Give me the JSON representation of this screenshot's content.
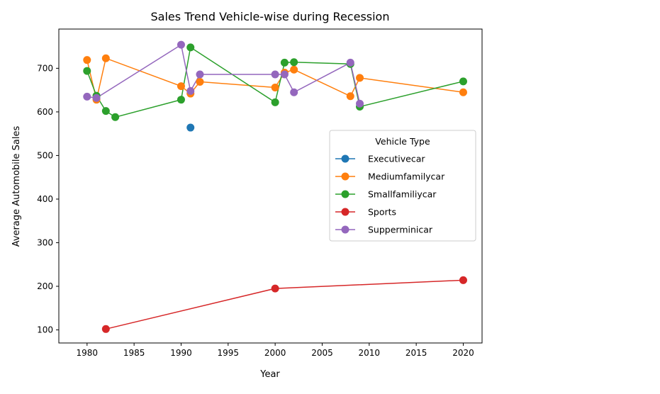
{
  "chart_data": {
    "type": "line",
    "title": "Sales Trend Vehicle-wise during Recession",
    "xlabel": "Year",
    "ylabel": "Average Automobile Sales",
    "xlim": [
      1977,
      2022
    ],
    "ylim": [
      70,
      790
    ],
    "x_ticks": [
      1980,
      1985,
      1990,
      1995,
      2000,
      2005,
      2010,
      2015,
      2020
    ],
    "y_ticks": [
      100,
      200,
      300,
      400,
      500,
      600,
      700
    ],
    "grid": false,
    "legend": {
      "title": "Vehicle Type",
      "placement": "center-right"
    },
    "series": [
      {
        "name": "Executivecar",
        "color": "#1f77b4",
        "points": [
          [
            1991,
            564
          ]
        ]
      },
      {
        "name": "Mediumfamilycar",
        "color": "#ff7f0e",
        "points": [
          [
            1980,
            719
          ],
          [
            1981,
            628
          ],
          [
            1982,
            723
          ],
          [
            1990,
            659
          ],
          [
            1991,
            642
          ],
          [
            1992,
            669
          ],
          [
            2000,
            656
          ],
          [
            2001,
            690
          ],
          [
            2002,
            697
          ],
          [
            2008,
            636
          ],
          [
            2009,
            678
          ],
          [
            2020,
            645
          ]
        ]
      },
      {
        "name": "Smallfamiliycar",
        "color": "#2ca02c",
        "points": [
          [
            1980,
            694
          ],
          [
            1981,
            637
          ],
          [
            1982,
            602
          ],
          [
            1983,
            588
          ],
          [
            1990,
            628
          ],
          [
            1991,
            748
          ],
          [
            2000,
            622
          ],
          [
            2001,
            713
          ],
          [
            2002,
            714
          ],
          [
            2008,
            710
          ],
          [
            2009,
            612
          ],
          [
            2020,
            670
          ]
        ]
      },
      {
        "name": "Sports",
        "color": "#d62728",
        "points": [
          [
            1982,
            102
          ],
          [
            2000,
            195
          ],
          [
            2020,
            214
          ]
        ]
      },
      {
        "name": "Supperminicar",
        "color": "#9467bd",
        "points": [
          [
            1980,
            635
          ],
          [
            1981,
            632
          ],
          [
            1990,
            754
          ],
          [
            1991,
            648
          ],
          [
            1992,
            686
          ],
          [
            2000,
            686
          ],
          [
            2001,
            686
          ],
          [
            2002,
            645
          ],
          [
            2008,
            713
          ],
          [
            2009,
            619
          ]
        ]
      }
    ]
  }
}
